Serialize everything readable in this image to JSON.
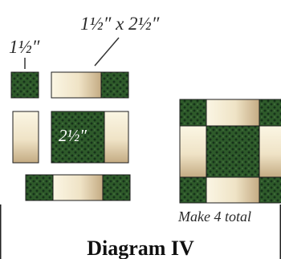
{
  "labels": {
    "small_square": "1½″",
    "rectangle": "1½″ x 2½″",
    "center_square": "2½″",
    "note": "Make 4 total",
    "title": "Diagram IV"
  },
  "colors": {
    "green_fabric": "#2e5a2a",
    "green_dot": "#16321a",
    "cream_light": "#fbf6e4",
    "cream_dark": "#c4ab83",
    "outline": "#1c1c1c"
  }
}
